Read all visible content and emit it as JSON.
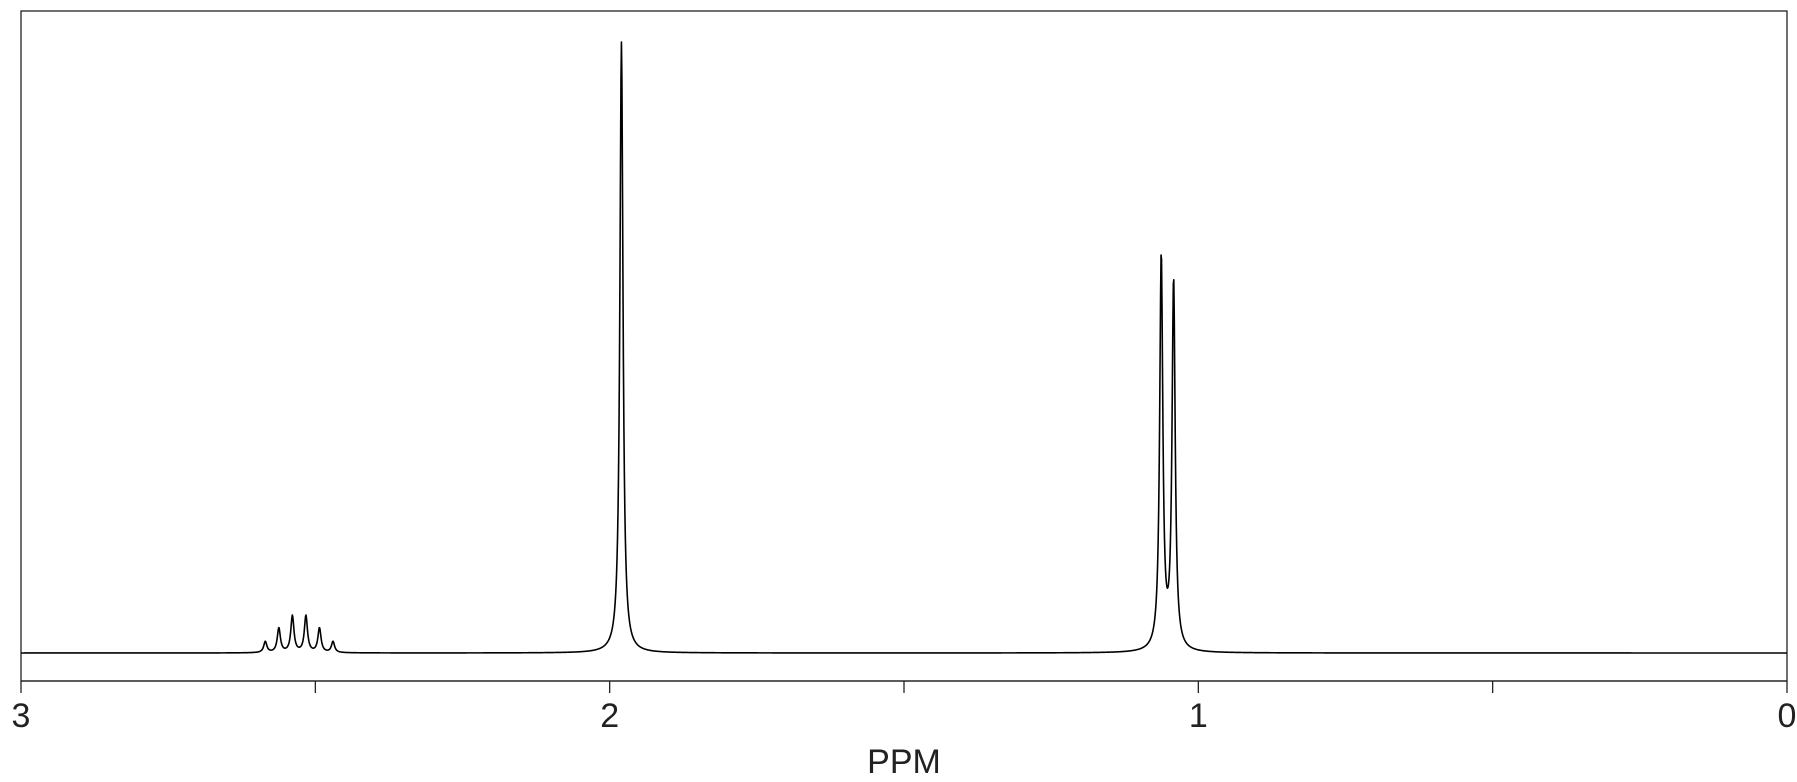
{
  "chart_data": {
    "type": "line",
    "xlabel": "PPM",
    "ylabel": "",
    "title": "",
    "x_reversed": true,
    "xlim": [
      3,
      0
    ],
    "ylim": [
      0,
      1
    ],
    "grid": false,
    "x_ticks": [
      {
        "value": 3,
        "label": "3"
      },
      {
        "value": 2.5,
        "label": ""
      },
      {
        "value": 2,
        "label": "2"
      },
      {
        "value": 1.5,
        "label": ""
      },
      {
        "value": 1,
        "label": "1"
      },
      {
        "value": 0.5,
        "label": ""
      },
      {
        "value": 0,
        "label": "0"
      }
    ],
    "baseline": 0.05,
    "peaks": [
      {
        "ppm": 2.585,
        "height": 0.018
      },
      {
        "ppm": 2.562,
        "height": 0.04
      },
      {
        "ppm": 2.539,
        "height": 0.06
      },
      {
        "ppm": 2.516,
        "height": 0.06
      },
      {
        "ppm": 2.493,
        "height": 0.04
      },
      {
        "ppm": 2.47,
        "height": 0.018
      },
      {
        "ppm": 1.98,
        "height": 1.0
      },
      {
        "ppm": 1.063,
        "height": 0.645
      },
      {
        "ppm": 1.042,
        "height": 0.603
      }
    ]
  }
}
